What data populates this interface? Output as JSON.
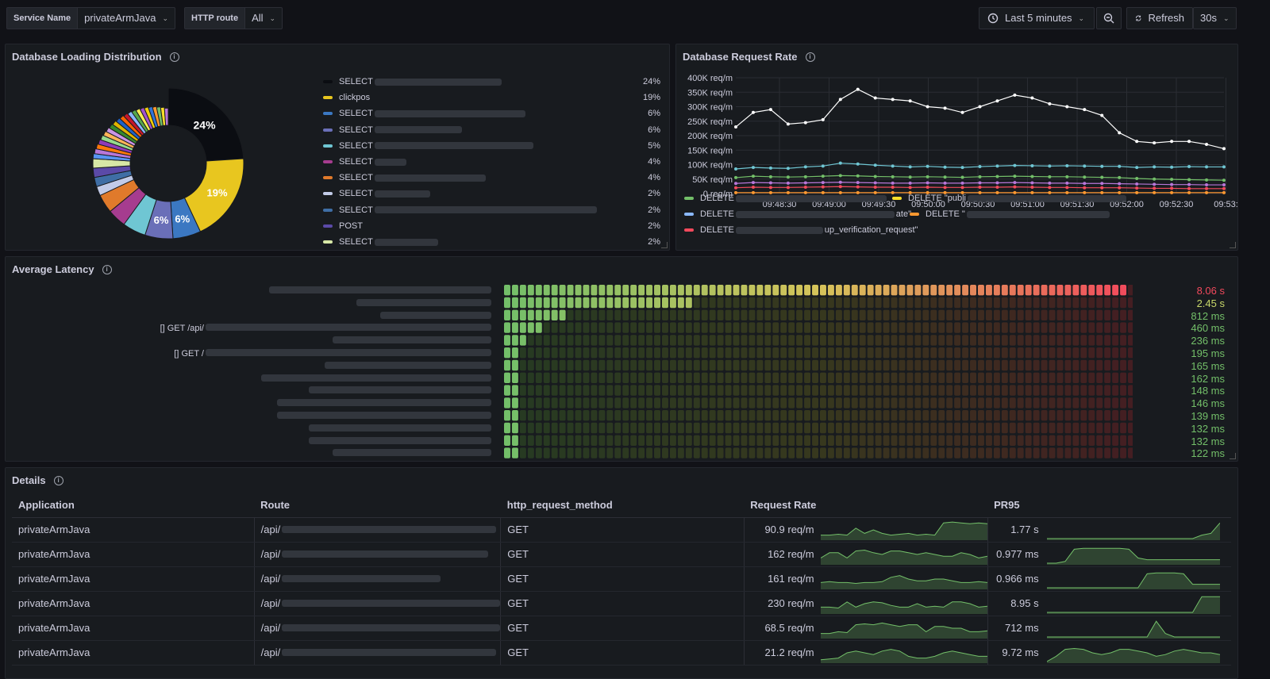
{
  "topbar": {
    "service_label": "Service Name",
    "service_value": "privateArmJava",
    "route_label": "HTTP route",
    "route_value": "All",
    "time_range": "Last 5 minutes",
    "refresh_label": "Refresh",
    "refresh_interval": "30s"
  },
  "db_loading": {
    "title": "Database Loading Distribution",
    "slice_labels": [
      "24%",
      "19%",
      "6%",
      "6%"
    ],
    "legend": [
      {
        "label": "SELECT",
        "pct": "24%",
        "color": "#0b0d12"
      },
      {
        "label": "clickpos",
        "pct": "19%",
        "color": "#e8c61f"
      },
      {
        "label": "SELECT",
        "pct": "6%",
        "color": "#3b78c2"
      },
      {
        "label": "SELECT",
        "pct": "6%",
        "color": "#6a6fb8"
      },
      {
        "label": "SELECT",
        "pct": "5%",
        "color": "#6fc6d3"
      },
      {
        "label": "SELECT",
        "pct": "4%",
        "color": "#a63c8f"
      },
      {
        "label": "SELECT",
        "pct": "4%",
        "color": "#e07a2b"
      },
      {
        "label": "SELECT",
        "pct": "2%",
        "color": "#c2cbe8"
      },
      {
        "label": "SELECT",
        "pct": "2%",
        "color": "#3f6ea5"
      },
      {
        "label": "POST",
        "pct": "2%",
        "color": "#5b4aa8"
      },
      {
        "label": "SELECT",
        "pct": "2%",
        "color": "#d7e8a6"
      }
    ]
  },
  "db_rate": {
    "title": "Database Request Rate",
    "y_ticks": [
      "400K req/m",
      "350K req/m",
      "300K req/m",
      "250K req/m",
      "200K req/m",
      "150K req/m",
      "100K req/m",
      "50K req/m",
      "0 req/m"
    ],
    "x_ticks": [
      "09:48:30",
      "09:49:00",
      "09:49:30",
      "09:50:00",
      "09:50:30",
      "09:51:00",
      "09:51:30",
      "09:52:00",
      "09:52:30",
      "09:53:"
    ],
    "legend": [
      {
        "prefix": "DELETE",
        "suffix": "",
        "color": "#73bf69"
      },
      {
        "prefix": "DELETE \"publi",
        "suffix": "",
        "color": "#fade2a"
      },
      {
        "prefix": "DELETE",
        "suffix": "ate\"",
        "color": "#8ab8ff"
      },
      {
        "prefix": "DELETE \"",
        "suffix": "",
        "color": "#ff9830"
      },
      {
        "prefix": "DELETE",
        "suffix": "up_verification_request\"",
        "color": "#f2495c"
      }
    ]
  },
  "chart_data": [
    {
      "type": "pie",
      "title": "Database Loading Distribution",
      "categories": [
        "SELECT",
        "clickpos",
        "SELECT",
        "SELECT",
        "SELECT",
        "SELECT",
        "SELECT",
        "SELECT",
        "SELECT",
        "POST",
        "SELECT"
      ],
      "values": [
        24,
        19,
        6,
        6,
        5,
        4,
        4,
        2,
        2,
        2,
        2
      ]
    },
    {
      "type": "line",
      "title": "Database Request Rate",
      "x": [
        "09:48:15",
        "09:48:25",
        "09:48:35",
        "09:48:45",
        "09:48:55",
        "09:49:05",
        "09:49:15",
        "09:49:25",
        "09:49:35",
        "09:49:45",
        "09:49:55",
        "09:50:05",
        "09:50:15",
        "09:50:25",
        "09:50:35",
        "09:50:45",
        "09:50:55",
        "09:51:05",
        "09:51:15",
        "09:51:25",
        "09:51:35",
        "09:51:45",
        "09:51:55",
        "09:52:05",
        "09:52:15",
        "09:52:25",
        "09:52:35",
        "09:52:45",
        "09:52:55"
      ],
      "ylim": [
        0,
        420000
      ],
      "series": [
        {
          "values": [
            230000,
            280000,
            290000,
            240000,
            245000,
            255000,
            325000,
            360000,
            330000,
            325000,
            320000,
            300000,
            295000,
            280000,
            300000,
            320000,
            340000,
            330000,
            310000,
            300000,
            290000,
            270000,
            210000,
            180000,
            175000,
            180000,
            180000,
            170000,
            155000
          ]
        },
        {
          "values": [
            85000,
            90000,
            88000,
            87000,
            92000,
            95000,
            105000,
            102000,
            98000,
            95000,
            92000,
            94000,
            91000,
            90000,
            93000,
            95000,
            97000,
            96000,
            95000,
            96000,
            95000,
            94000,
            94000,
            90000,
            92000,
            91000,
            93000,
            92000,
            92000
          ]
        },
        {
          "values": [
            55000,
            60000,
            58000,
            57000,
            58000,
            60000,
            62000,
            61000,
            59000,
            58000,
            57000,
            58000,
            57000,
            56000,
            58000,
            59000,
            60000,
            59000,
            58000,
            58000,
            57000,
            56000,
            55000,
            52000,
            50000,
            49000,
            48000,
            47000,
            46000
          ]
        },
        {
          "values": [
            35000,
            38000,
            37000,
            36000,
            37000,
            38000,
            39000,
            38000,
            37000,
            36000,
            36000,
            37000,
            36000,
            36000,
            37000,
            37000,
            38000,
            37000,
            36000,
            36000,
            35000,
            35000,
            34000,
            33000,
            32000,
            31000,
            31000,
            30000,
            30000
          ]
        },
        {
          "values": [
            20000,
            22000,
            21000,
            21000,
            22000,
            23000,
            24000,
            23000,
            22000,
            22000,
            21000,
            22000,
            21000,
            21000,
            22000,
            22000,
            23000,
            22000,
            21000,
            21000,
            20000,
            20000,
            20000,
            19000,
            18000,
            18000,
            17000,
            17000,
            17000
          ]
        },
        {
          "values": [
            3000,
            3000,
            3000,
            3000,
            3000,
            3000,
            3000,
            3000,
            3000,
            3000,
            3000,
            3000,
            3000,
            3000,
            3000,
            3000,
            3000,
            3000,
            3000,
            3000,
            3000,
            3000,
            3000,
            3000,
            3000,
            3000,
            3000,
            3000,
            3000
          ]
        }
      ]
    },
    {
      "type": "heatmap",
      "title": "Average Latency",
      "categories": [
        "",
        "",
        "",
        "[] GET /api/",
        "",
        "[] GET /",
        "",
        "",
        "",
        "",
        "",
        "",
        "",
        ""
      ],
      "values": [
        "8.06 s",
        "2.45 s",
        "812 ms",
        "460 ms",
        "236 ms",
        "195 ms",
        "165 ms",
        "162 ms",
        "148 ms",
        "146 ms",
        "139 ms",
        "132 ms",
        "132 ms",
        "122 ms"
      ],
      "lit_cells": [
        79,
        24,
        8,
        5,
        3,
        2,
        2,
        2,
        2,
        2,
        2,
        2,
        2,
        2
      ]
    }
  ],
  "latency": {
    "title": "Average Latency",
    "rows": [
      {
        "label": "",
        "value": "8.06 s",
        "color": "#f2495c"
      },
      {
        "label": "",
        "value": "2.45 s",
        "color": "#c8d86a"
      },
      {
        "label": "",
        "value": "812 ms",
        "color": "#73bf69"
      },
      {
        "label": "[] GET /api/",
        "value": "460 ms",
        "color": "#73bf69"
      },
      {
        "label": "",
        "value": "236 ms",
        "color": "#73bf69"
      },
      {
        "label": "[] GET /",
        "value": "195 ms",
        "color": "#73bf69"
      },
      {
        "label": "",
        "value": "165 ms",
        "color": "#73bf69"
      },
      {
        "label": "",
        "value": "162 ms",
        "color": "#73bf69"
      },
      {
        "label": "",
        "value": "148 ms",
        "color": "#73bf69"
      },
      {
        "label": "",
        "value": "146 ms",
        "color": "#73bf69"
      },
      {
        "label": "",
        "value": "139 ms",
        "color": "#73bf69"
      },
      {
        "label": "",
        "value": "132 ms",
        "color": "#73bf69"
      },
      {
        "label": "",
        "value": "132 ms",
        "color": "#73bf69"
      },
      {
        "label": "",
        "value": "122 ms",
        "color": "#73bf69"
      }
    ]
  },
  "details": {
    "title": "Details",
    "columns": [
      "Application",
      "Route",
      "http_request_method",
      "Request Rate",
      "PR95"
    ],
    "rows": [
      {
        "app": "privateArmJava",
        "route": "/api/",
        "method": "GET",
        "rate": "90.9 req/m",
        "pr95": "1.77 s"
      },
      {
        "app": "privateArmJava",
        "route": "/api/",
        "method": "GET",
        "rate": "162 req/m",
        "pr95": "0.977 ms"
      },
      {
        "app": "privateArmJava",
        "route": "/api/",
        "method": "GET",
        "rate": "161 req/m",
        "pr95": "0.966 ms"
      },
      {
        "app": "privateArmJava",
        "route": "/api/",
        "method": "GET",
        "rate": "230 req/m",
        "pr95": "8.95 s"
      },
      {
        "app": "privateArmJava",
        "route": "/api/",
        "method": "GET",
        "rate": "68.5 req/m",
        "pr95": "712 ms"
      },
      {
        "app": "privateArmJava",
        "route": "/api/",
        "method": "GET",
        "rate": "21.2 req/m",
        "pr95": "9.72 ms"
      }
    ]
  },
  "colors": {
    "background": "#111217",
    "panel": "#181b1f",
    "accent_green": "#73bf69",
    "accent_red": "#f2495c"
  }
}
